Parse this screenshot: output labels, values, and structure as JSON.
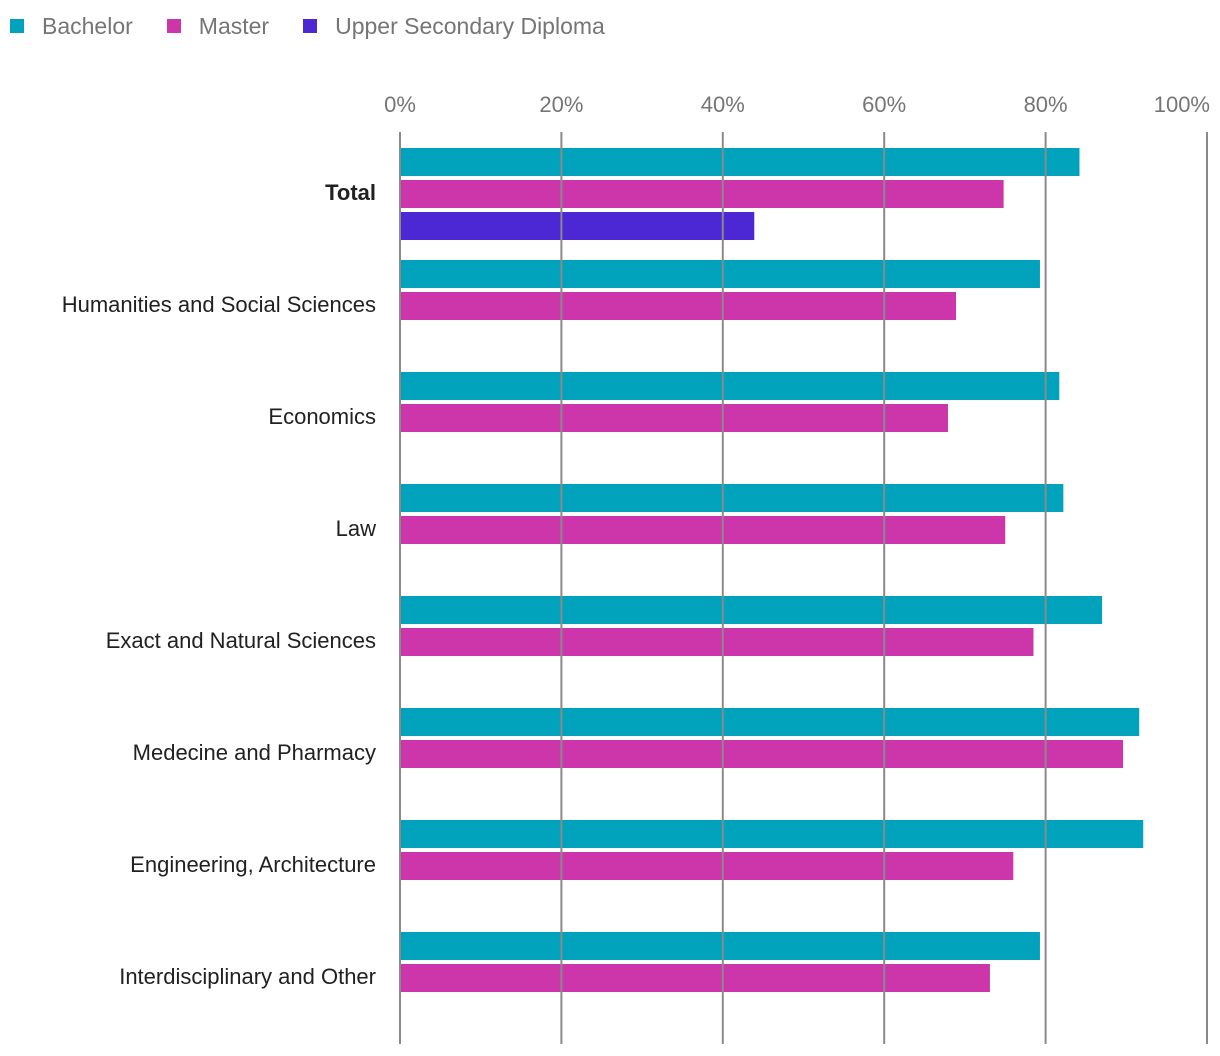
{
  "chart_data": {
    "type": "bar",
    "orientation": "horizontal",
    "categories": [
      "Total",
      "Humanities and Social Sciences",
      "Economics",
      "Law",
      "Exact and Natural Sciences",
      "Medecine and Pharmacy",
      "Engineering, Architecture",
      "Interdisciplinary and Other"
    ],
    "bold_categories": [
      "Total"
    ],
    "series": [
      {
        "name": "Bachelor",
        "color": "#00A2BC",
        "values": [
          84.2,
          79.3,
          81.7,
          82.2,
          87.0,
          91.6,
          92.1,
          79.3
        ]
      },
      {
        "name": "Master",
        "color": "#CC36AA",
        "values": [
          74.8,
          68.9,
          67.9,
          75.0,
          78.5,
          89.6,
          76.0,
          73.1
        ]
      },
      {
        "name": "Upper Secondary Diploma",
        "color": "#4C27D4",
        "values": [
          43.9,
          null,
          null,
          null,
          null,
          null,
          null,
          null
        ]
      }
    ],
    "x_ticks": [
      "0%",
      "20%",
      "40%",
      "60%",
      "80%",
      "100%"
    ],
    "xlim": [
      0,
      100
    ],
    "x_axis_position": "top",
    "grid": true,
    "legend_position": "top-left",
    "title": "",
    "xlabel": "",
    "ylabel": ""
  }
}
